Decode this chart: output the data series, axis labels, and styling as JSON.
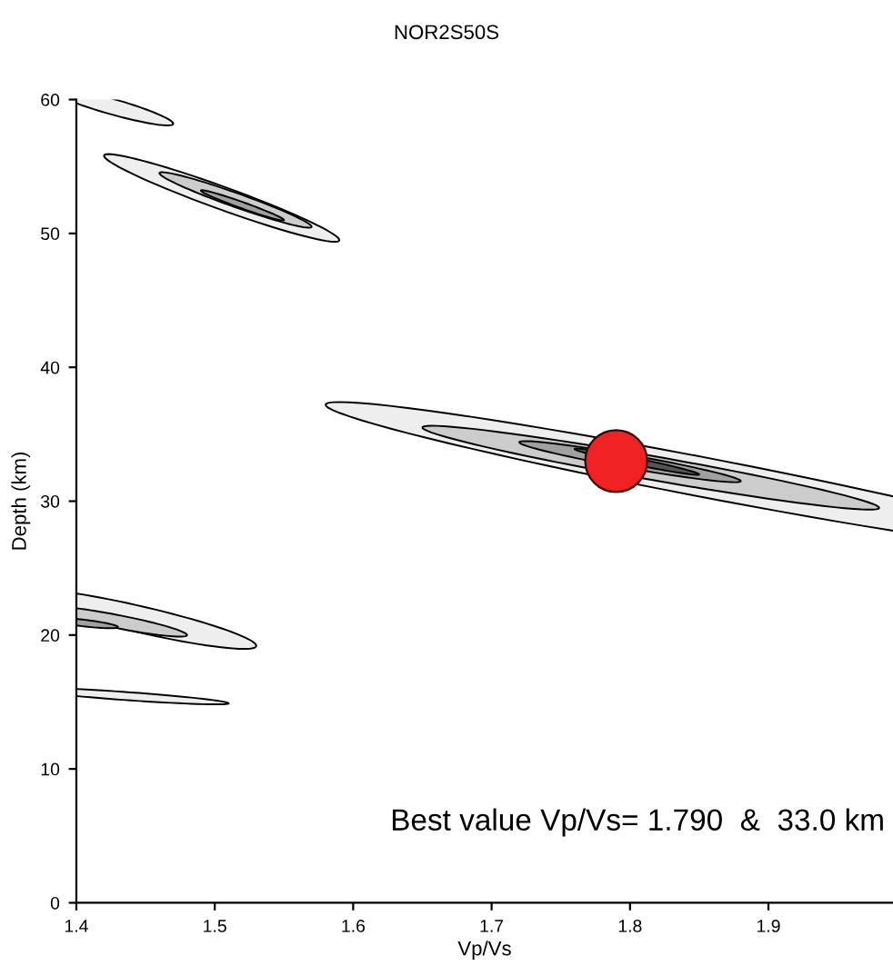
{
  "chart_data": {
    "type": "scatter",
    "title": "NOR2S50S",
    "xlabel": "Vp/Vs",
    "ylabel": "Depth (km)",
    "x": [
      1.79
    ],
    "series": [
      {
        "color": "#ee2222",
        "values": [
          33.0
        ]
      }
    ],
    "marker": "circle",
    "xlim": [
      1.4,
      1.99
    ],
    "ylim": [
      0,
      60
    ],
    "xticks": [
      1.4,
      1.5,
      1.6,
      1.7,
      1.8,
      1.9
    ],
    "yticks": [
      0,
      10,
      20,
      30,
      40,
      50,
      60
    ],
    "grid": false,
    "annotations": [
      "Best value Vp/Vs= 1.790  &  33.0 km"
    ]
  }
}
